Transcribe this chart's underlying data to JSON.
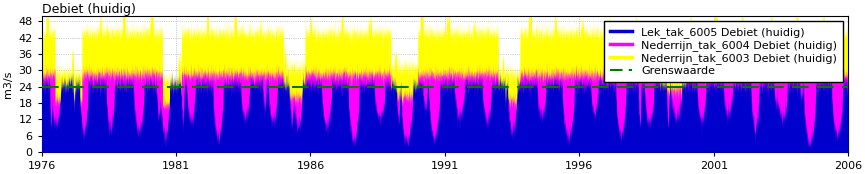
{
  "title": "Debiet (huidig)",
  "ylabel": "m3/s",
  "xlim_start": 1976,
  "xlim_end": 2006,
  "ylim": [
    0,
    50
  ],
  "yticks": [
    0,
    6,
    12,
    18,
    24,
    30,
    36,
    42,
    48
  ],
  "xticks": [
    1976,
    1981,
    1986,
    1991,
    1996,
    2001,
    2006
  ],
  "grenswaarde": 24,
  "color_lek": "#0000CD",
  "color_ned4": "#FF00FF",
  "color_ned3": "#FFFF00",
  "color_grens": "#007700",
  "legend_labels": [
    "Lek_tak_6005 Debiet (huidig)",
    "Nederrijn_tak_6004 Debiet (huidig)",
    "Nederrijn_tak_6003 Debiet (huidig)",
    "Grenswaarde"
  ],
  "title_fontsize": 9,
  "label_fontsize": 8,
  "tick_fontsize": 8,
  "legend_fontsize": 8
}
